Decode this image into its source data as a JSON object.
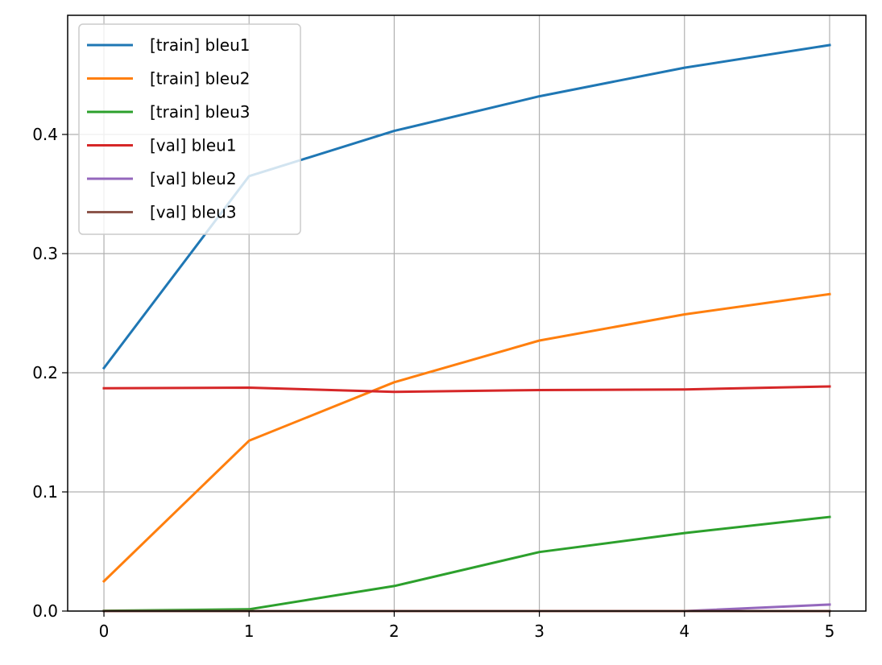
{
  "chart_data": {
    "type": "line",
    "title": "",
    "xlabel": "",
    "ylabel": "",
    "x": [
      0,
      1,
      2,
      3,
      4,
      5
    ],
    "xlim": [
      -0.25,
      5.25
    ],
    "ylim": [
      0.0,
      0.5
    ],
    "x_ticks": [
      0,
      1,
      2,
      3,
      4,
      5
    ],
    "y_ticks": [
      0.0,
      0.1,
      0.2,
      0.3,
      0.4
    ],
    "x_tick_labels": [
      "0",
      "1",
      "2",
      "3",
      "4",
      "5"
    ],
    "y_tick_labels": [
      "0.0",
      "0.1",
      "0.2",
      "0.3",
      "0.4"
    ],
    "grid": true,
    "legend_position": "upper-left",
    "series": [
      {
        "name": "[train] bleu1",
        "color": "#1f77b4",
        "values": [
          0.204,
          0.365,
          0.403,
          0.432,
          0.456,
          0.475
        ]
      },
      {
        "name": "[train] bleu2",
        "color": "#ff7f0e",
        "values": [
          0.025,
          0.143,
          0.192,
          0.227,
          0.249,
          0.266
        ]
      },
      {
        "name": "[train] bleu3",
        "color": "#2ca02c",
        "values": [
          0.0003,
          0.0015,
          0.021,
          0.0495,
          0.0655,
          0.079
        ]
      },
      {
        "name": "[val] bleu1",
        "color": "#d62728",
        "values": [
          0.187,
          0.1875,
          0.184,
          0.1855,
          0.186,
          0.1885
        ]
      },
      {
        "name": "[val] bleu2",
        "color": "#9467bd",
        "values": [
          0.0,
          0.0,
          0.0,
          0.0,
          0.0,
          0.0055
        ]
      },
      {
        "name": "[val] bleu3",
        "color": "#8c564b",
        "values": [
          0.0,
          0.0,
          0.0,
          0.0,
          0.0,
          0.0
        ]
      }
    ]
  }
}
